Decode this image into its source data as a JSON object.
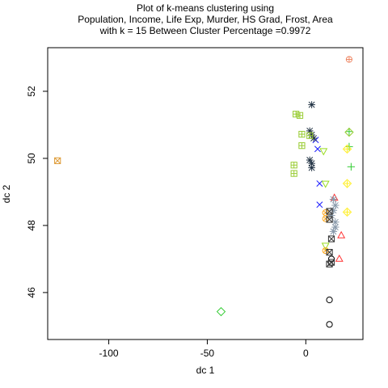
{
  "chart_data": {
    "type": "scatter",
    "title": [
      "Plot of k-means clustering using",
      "Population, Income, Life Exp, Murder, HS Grad, Frost, Area",
      "with  k = 15 Between Cluster Percentage =0.9972"
    ],
    "xlabel": "dc 1",
    "ylabel": "dc 2",
    "xlim": [
      -131,
      29
    ],
    "ylim": [
      44.6,
      53.3
    ],
    "xticks": [
      -100,
      -50,
      0
    ],
    "yticks": [
      46,
      48,
      50,
      52
    ],
    "grid": false,
    "legend": "none",
    "series": [
      {
        "cluster": 1,
        "marker": "circle",
        "color": "#000000",
        "points": [
          [
            12,
            45.05
          ],
          [
            12,
            45.78
          ],
          [
            13,
            47.0
          ]
        ]
      },
      {
        "cluster": 2,
        "marker": "triangle",
        "color": "#ff3333",
        "points": [
          [
            14.5,
            48.82
          ],
          [
            18,
            47.7
          ],
          [
            17,
            47.0
          ]
        ]
      },
      {
        "cluster": 3,
        "marker": "plus",
        "color": "#33cc33",
        "points": [
          [
            22,
            50.8
          ],
          [
            22,
            50.35
          ],
          [
            23,
            49.75
          ]
        ]
      },
      {
        "cluster": 4,
        "marker": "x",
        "color": "#1a1aff",
        "points": [
          [
            5,
            50.55
          ],
          [
            6,
            50.28
          ],
          [
            7,
            49.25
          ],
          [
            7,
            48.62
          ]
        ]
      },
      {
        "cluster": 5,
        "marker": "diamond",
        "color": "#33cc33",
        "points": [
          [
            -43,
            45.43
          ]
        ]
      },
      {
        "cluster": 6,
        "marker": "triangle-down",
        "color": "#99dd22",
        "points": [
          [
            9,
            50.22
          ],
          [
            10,
            49.25
          ],
          [
            10,
            47.4
          ]
        ]
      },
      {
        "cluster": 7,
        "marker": "square-cross",
        "color": "#dd9933",
        "points": [
          [
            -126,
            49.93
          ]
        ]
      },
      {
        "cluster": 8,
        "marker": "asterisk",
        "color": "#223344",
        "points": [
          [
            3,
            51.6
          ],
          [
            2,
            50.82
          ],
          [
            3,
            50.7
          ],
          [
            4,
            50.6
          ],
          [
            2,
            49.95
          ],
          [
            3,
            49.85
          ],
          [
            3,
            49.72
          ]
        ]
      },
      {
        "cluster": 9,
        "marker": "diamond-plus",
        "color": "#ffee22",
        "points": [
          [
            21,
            50.28
          ],
          [
            21,
            49.25
          ],
          [
            21,
            48.4
          ]
        ]
      },
      {
        "cluster": 10,
        "marker": "circle-plus",
        "color": "#ee8866",
        "points": [
          [
            22,
            52.95
          ]
        ]
      },
      {
        "cluster": 11,
        "marker": "star",
        "color": "#8899aa",
        "points": [
          [
            14,
            48.78
          ],
          [
            15,
            48.6
          ],
          [
            14,
            48.45
          ],
          [
            13,
            48.3
          ],
          [
            15,
            48.1
          ],
          [
            15,
            47.95
          ],
          [
            14,
            47.82
          ]
        ]
      },
      {
        "cluster": 12,
        "marker": "square-plus",
        "color": "#99cc33",
        "points": [
          [
            -5,
            51.32
          ],
          [
            -3,
            51.28
          ],
          [
            -2,
            50.72
          ],
          [
            2,
            50.68
          ],
          [
            -2,
            50.38
          ],
          [
            -6,
            49.8
          ],
          [
            -6,
            49.55
          ]
        ]
      },
      {
        "cluster": 13,
        "marker": "circle-cross",
        "color": "#ffaa22",
        "points": [
          [
            10,
            48.38
          ],
          [
            10,
            48.2
          ],
          [
            10,
            47.25
          ]
        ]
      },
      {
        "cluster": 14,
        "marker": "square-x",
        "color": "#333333",
        "points": [
          [
            12,
            48.42
          ],
          [
            12,
            48.18
          ],
          [
            13,
            47.6
          ],
          [
            12,
            47.2
          ],
          [
            12,
            46.85
          ],
          [
            13,
            46.9
          ]
        ]
      },
      {
        "cluster": 15,
        "marker": "diamond",
        "color": "#99cc33",
        "points": [
          [
            22,
            50.78
          ]
        ]
      }
    ]
  }
}
